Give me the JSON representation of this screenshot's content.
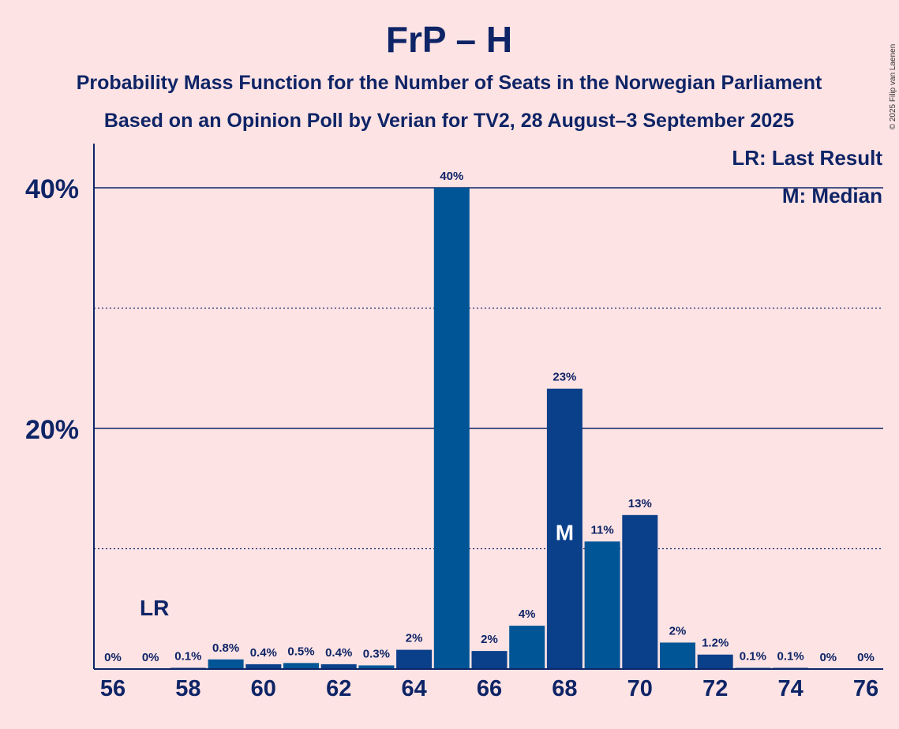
{
  "chart_data": {
    "type": "bar",
    "title": "FrP – H",
    "subtitle1": "Probability Mass Function for the Number of Seats in the Norwegian Parliament",
    "subtitle2": "Based on an Opinion Poll by Verian for TV2, 28 August–3 September 2025",
    "copyright": "© 2025 Filip van Laenen",
    "legend": {
      "lr": "LR: Last Result",
      "m": "M: Median"
    },
    "ylim": [
      0,
      44
    ],
    "yticks": [
      {
        "value": 20,
        "label": "20%"
      },
      {
        "value": 40,
        "label": "40%"
      }
    ],
    "dotted_gridlines": [
      10,
      30
    ],
    "x_tick_labels": [
      "56",
      "58",
      "60",
      "62",
      "64",
      "66",
      "68",
      "70",
      "72",
      "74",
      "76"
    ],
    "categories": [
      56,
      57,
      58,
      59,
      60,
      61,
      62,
      63,
      64,
      65,
      66,
      67,
      68,
      69,
      70,
      71,
      72,
      73,
      74,
      75,
      76
    ],
    "values": [
      0,
      0,
      0.1,
      0.8,
      0.4,
      0.5,
      0.4,
      0.3,
      1.6,
      40,
      1.5,
      3.6,
      23.3,
      10.6,
      12.8,
      2.2,
      1.2,
      0.1,
      0.1,
      0,
      0
    ],
    "value_labels": [
      "0%",
      "0%",
      "0.1%",
      "0.8%",
      "0.4%",
      "0.5%",
      "0.4%",
      "0.3%",
      "2%",
      "40%",
      "2%",
      "4%",
      "23%",
      "11%",
      "13%",
      "2%",
      "1.2%",
      "0.1%",
      "0.1%",
      "0%",
      "0%"
    ],
    "last_result": {
      "seat": 57,
      "label": "LR"
    },
    "median": {
      "seat": 68,
      "label": "M"
    },
    "colors": {
      "bar_light": "#005596",
      "bar_dark": "#0a3f8a",
      "axis": "#0e2466",
      "background": "#fde3e4"
    }
  }
}
